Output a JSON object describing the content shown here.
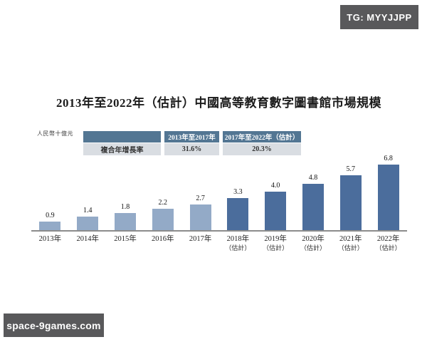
{
  "watermarks": {
    "top_right": "TG: MYYJJPP",
    "bottom_left": "space-9games.com"
  },
  "chart": {
    "title": "2013年至2022年（估計）中國高等教育數字圖書館市場規模",
    "unit_label": "人民幣十億元"
  },
  "cagr_table": {
    "row_label": "複合年增長率",
    "headers": [
      "2013年至2017年",
      "2017年至2022年（估計）"
    ],
    "values": [
      "31.6%",
      "20.3%"
    ]
  },
  "chart_data": {
    "type": "bar",
    "title": "2013年至2022年（估計）中國高等教育數字圖書館市場規模",
    "ylabel": "人民幣十億元",
    "xlabel": "",
    "categories": [
      "2013年",
      "2014年",
      "2015年",
      "2016年",
      "2017年",
      "2018年",
      "2019年",
      "2020年",
      "2021年",
      "2022年"
    ],
    "estimate_suffix": "（估計）",
    "estimated_from_index": 5,
    "values": [
      0.9,
      1.4,
      1.8,
      2.2,
      2.7,
      3.3,
      4.0,
      4.8,
      5.7,
      6.8
    ],
    "value_labels": [
      "0.9",
      "1.4",
      "1.8",
      "2.2",
      "2.7",
      "3.3",
      "4.0",
      "4.8",
      "5.7",
      "6.8"
    ],
    "colors": {
      "actual": "#93aac7",
      "estimate": "#4b6d9c"
    },
    "ylim": [
      0,
      7.5
    ],
    "grid": false,
    "legend": "none",
    "annotations": {
      "cagr_2013_2017": "31.6%",
      "cagr_2017_2022_est": "20.3%"
    }
  }
}
